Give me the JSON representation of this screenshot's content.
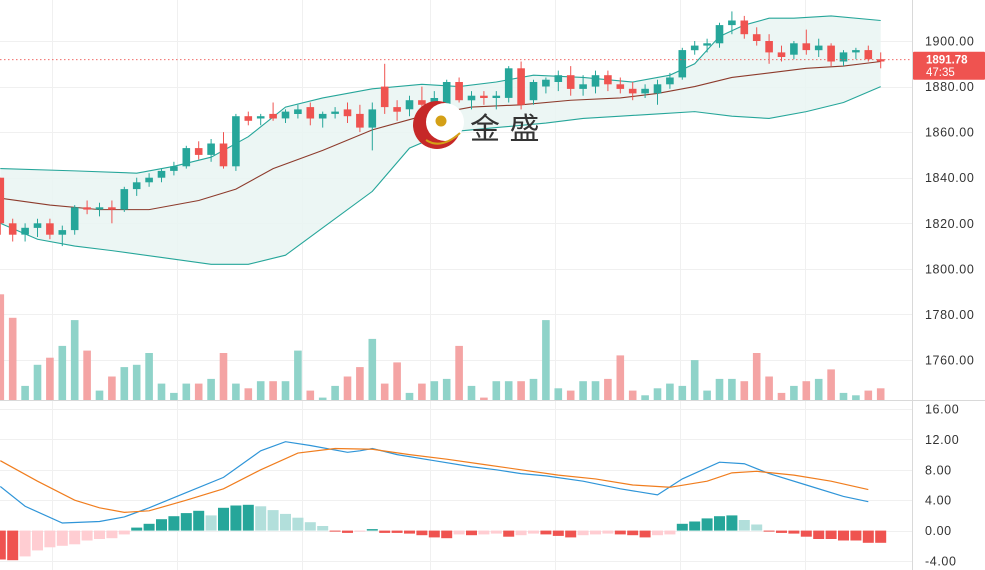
{
  "watermark": {
    "brand_text": "金 盛"
  },
  "current_price": {
    "price": "1891.78",
    "countdown": "47:35",
    "color": "#ef5350"
  },
  "colors": {
    "up": "#26a69a",
    "down": "#ef5350",
    "vol_up": "#8fd3c9",
    "vol_down": "#f4a4a4",
    "bb_band": "#26a69a",
    "bb_mid": "#8d3b2c",
    "bb_fill": "#e9f5f2",
    "macd_dif": "#2f95d8",
    "macd_dea": "#f07d1e",
    "hist_pos_grow": "#26a69a",
    "hist_pos_fall": "#b2dfdb",
    "hist_neg_grow": "#ef5350",
    "hist_neg_fall": "#ffcdd2",
    "grid": "#f0f0f0",
    "axis_line": "#d9d9d9",
    "logo": "#c62828",
    "logo_ball": "#d4a017"
  },
  "chart_data": [
    {
      "type": "candlestick",
      "title": "",
      "indicators": [
        "Bollinger Bands",
        "Volume"
      ],
      "ylim": [
        1744,
        1912
      ],
      "yticks": [
        "1900.00",
        "1880.00",
        "1860.00",
        "1840.00",
        "1820.00",
        "1800.00",
        "1780.00",
        "1760.00"
      ],
      "grid": true,
      "candles": [
        [
          1840,
          1840,
          1815,
          1820
        ],
        [
          1820,
          1822,
          1812,
          1815
        ],
        [
          1815,
          1820,
          1812,
          1818
        ],
        [
          1818,
          1822,
          1814,
          1820
        ],
        [
          1820,
          1822,
          1813,
          1815
        ],
        [
          1815,
          1819,
          1810,
          1817
        ],
        [
          1817,
          1828,
          1815,
          1827
        ],
        [
          1827,
          1830,
          1824,
          1826
        ],
        [
          1826,
          1829,
          1823,
          1827
        ],
        [
          1827,
          1830,
          1820,
          1826
        ],
        [
          1826,
          1836,
          1825,
          1835
        ],
        [
          1835,
          1840,
          1832,
          1838
        ],
        [
          1838,
          1842,
          1836,
          1840
        ],
        [
          1840,
          1844,
          1838,
          1843
        ],
        [
          1843,
          1847,
          1841,
          1845
        ],
        [
          1845,
          1854,
          1844,
          1853
        ],
        [
          1853,
          1856,
          1848,
          1850
        ],
        [
          1850,
          1857,
          1847,
          1855
        ],
        [
          1855,
          1860,
          1844,
          1845
        ],
        [
          1845,
          1868,
          1843,
          1867
        ],
        [
          1867,
          1869,
          1863,
          1865
        ],
        [
          1866,
          1868,
          1863,
          1867
        ],
        [
          1868,
          1873,
          1865,
          1866
        ],
        [
          1866,
          1870,
          1864,
          1869
        ],
        [
          1868,
          1872,
          1866,
          1870
        ],
        [
          1871,
          1873,
          1863,
          1866
        ],
        [
          1866,
          1869,
          1862,
          1868
        ],
        [
          1868,
          1871,
          1866,
          1869
        ],
        [
          1870,
          1873,
          1864,
          1867
        ],
        [
          1868,
          1872,
          1860,
          1862
        ],
        [
          1862,
          1873,
          1852,
          1870
        ],
        [
          1880,
          1890,
          1868,
          1871
        ],
        [
          1871,
          1874,
          1865,
          1869
        ],
        [
          1870,
          1876,
          1867,
          1874
        ],
        [
          1874,
          1880,
          1868,
          1872
        ],
        [
          1872,
          1878,
          1867,
          1875
        ],
        [
          1870,
          1883,
          1868,
          1882
        ],
        [
          1882,
          1884,
          1873,
          1874
        ],
        [
          1874,
          1878,
          1870,
          1876
        ],
        [
          1876,
          1878,
          1872,
          1875
        ],
        [
          1875,
          1878,
          1870,
          1876
        ],
        [
          1875,
          1889,
          1873,
          1888
        ],
        [
          1888,
          1891,
          1870,
          1872
        ],
        [
          1874,
          1883,
          1872,
          1882
        ],
        [
          1880,
          1884,
          1877,
          1883
        ],
        [
          1882,
          1887,
          1878,
          1885
        ],
        [
          1885,
          1889,
          1876,
          1879
        ],
        [
          1879,
          1885,
          1876,
          1881
        ],
        [
          1880,
          1887,
          1877,
          1885
        ],
        [
          1885,
          1887,
          1878,
          1881
        ],
        [
          1881,
          1884,
          1877,
          1879
        ],
        [
          1879,
          1882,
          1874,
          1877
        ],
        [
          1877,
          1881,
          1875,
          1879
        ],
        [
          1877,
          1883,
          1872,
          1881
        ],
        [
          1881,
          1886,
          1879,
          1884
        ],
        [
          1884,
          1897,
          1883,
          1896
        ],
        [
          1896,
          1900,
          1894,
          1898
        ],
        [
          1898,
          1901,
          1895,
          1899
        ],
        [
          1899,
          1908,
          1897,
          1907
        ],
        [
          1907,
          1913,
          1903,
          1909
        ],
        [
          1909,
          1911,
          1901,
          1903
        ],
        [
          1903,
          1906,
          1898,
          1900
        ],
        [
          1900,
          1903,
          1890,
          1895
        ],
        [
          1895,
          1898,
          1891,
          1893
        ],
        [
          1894,
          1900,
          1892,
          1899
        ],
        [
          1899,
          1905,
          1894,
          1896
        ],
        [
          1896,
          1901,
          1893,
          1898
        ],
        [
          1898,
          1899,
          1889,
          1891
        ],
        [
          1891,
          1896,
          1889,
          1895
        ],
        [
          1895,
          1897,
          1892,
          1896
        ],
        [
          1896,
          1898,
          1891,
          1892
        ],
        [
          1892,
          1895,
          1888,
          1891
        ]
      ],
      "volume": [
        45,
        35,
        6,
        15,
        18,
        23,
        34,
        21,
        4,
        10,
        14,
        15,
        20,
        7,
        3,
        7,
        7,
        9,
        20,
        7,
        5,
        8,
        8,
        8,
        21,
        4,
        1,
        6,
        10,
        14,
        26,
        7,
        16,
        3,
        7,
        8,
        9,
        23,
        6,
        1,
        8,
        8,
        8,
        9,
        34,
        5,
        4,
        8,
        8,
        9,
        19,
        4,
        2,
        5,
        7,
        6,
        17,
        4,
        9,
        9,
        8,
        20,
        10,
        3,
        6,
        8,
        9,
        13,
        3,
        2,
        4,
        5
      ],
      "bollinger": {
        "upper": [
          [
            0,
            1844
          ],
          [
            6,
            1843
          ],
          [
            11,
            1842
          ],
          [
            14,
            1845
          ],
          [
            17,
            1849
          ],
          [
            20,
            1858
          ],
          [
            23,
            1871
          ],
          [
            26,
            1875
          ],
          [
            30,
            1879
          ],
          [
            34,
            1881
          ],
          [
            37,
            1880
          ],
          [
            40,
            1882
          ],
          [
            43,
            1885
          ],
          [
            47,
            1884
          ],
          [
            51,
            1882
          ],
          [
            54,
            1885
          ],
          [
            56,
            1890
          ],
          [
            58,
            1902
          ],
          [
            60,
            1907
          ],
          [
            62,
            1910
          ],
          [
            64,
            1910
          ],
          [
            67,
            1911
          ],
          [
            71,
            1909
          ]
        ],
        "middle": [
          [
            0,
            1831
          ],
          [
            4,
            1828
          ],
          [
            8,
            1826
          ],
          [
            12,
            1826
          ],
          [
            16,
            1830
          ],
          [
            19,
            1835
          ],
          [
            22,
            1844
          ],
          [
            26,
            1852
          ],
          [
            30,
            1861
          ],
          [
            34,
            1867
          ],
          [
            38,
            1871
          ],
          [
            42,
            1872
          ],
          [
            46,
            1874
          ],
          [
            50,
            1875
          ],
          [
            53,
            1877
          ],
          [
            56,
            1880
          ],
          [
            59,
            1884
          ],
          [
            62,
            1886
          ],
          [
            65,
            1888
          ],
          [
            68,
            1889
          ],
          [
            71,
            1891
          ]
        ],
        "lower": [
          [
            0,
            1820
          ],
          [
            3,
            1813
          ],
          [
            6,
            1810
          ],
          [
            9,
            1808
          ],
          [
            13,
            1805
          ],
          [
            17,
            1802
          ],
          [
            20,
            1802
          ],
          [
            23,
            1806
          ],
          [
            26,
            1818
          ],
          [
            30,
            1834
          ],
          [
            33,
            1853
          ],
          [
            36,
            1860
          ],
          [
            40,
            1862
          ],
          [
            44,
            1864
          ],
          [
            47,
            1866
          ],
          [
            50,
            1867
          ],
          [
            53,
            1868
          ],
          [
            56,
            1869
          ],
          [
            59,
            1867
          ],
          [
            62,
            1866
          ],
          [
            65,
            1869
          ],
          [
            68,
            1873
          ],
          [
            71,
            1880
          ]
        ]
      }
    },
    {
      "type": "line",
      "title": "",
      "indicator": "MACD",
      "ylim": [
        -4,
        16
      ],
      "yticks": [
        "16.00",
        "12.00",
        "8.00",
        "4.00",
        "0.00",
        "-4.00"
      ],
      "series": [
        {
          "values": [
            [
              0,
              5.8
            ],
            [
              2,
              3.2
            ],
            [
              5,
              1.0
            ],
            [
              8,
              1.2
            ],
            [
              10,
              1.8
            ],
            [
              12,
              3.0
            ],
            [
              15,
              5.0
            ],
            [
              18,
              7.0
            ],
            [
              21,
              10.5
            ],
            [
              23,
              11.7
            ],
            [
              25,
              11.2
            ],
            [
              28,
              10.3
            ],
            [
              29,
              10.5
            ],
            [
              30,
              10.8
            ],
            [
              32,
              10.0
            ],
            [
              35,
              9.2
            ],
            [
              38,
              8.4
            ],
            [
              40,
              8.0
            ],
            [
              42,
              7.5
            ],
            [
              44,
              7.2
            ],
            [
              47,
              6.5
            ],
            [
              50,
              5.5
            ],
            [
              53,
              4.7
            ],
            [
              55,
              6.8
            ],
            [
              58,
              9.0
            ],
            [
              60,
              8.8
            ],
            [
              62,
              7.5
            ],
            [
              65,
              6.0
            ],
            [
              68,
              4.5
            ],
            [
              70,
              3.8
            ]
          ]
        },
        {
          "values": [
            [
              0,
              9.2
            ],
            [
              3,
              6.5
            ],
            [
              6,
              4.0
            ],
            [
              8,
              3.0
            ],
            [
              10,
              2.4
            ],
            [
              12,
              2.6
            ],
            [
              15,
              4.0
            ],
            [
              18,
              5.5
            ],
            [
              21,
              8.0
            ],
            [
              24,
              10.2
            ],
            [
              27,
              10.8
            ],
            [
              30,
              10.7
            ],
            [
              33,
              10.0
            ],
            [
              36,
              9.4
            ],
            [
              39,
              8.7
            ],
            [
              42,
              8.0
            ],
            [
              45,
              7.3
            ],
            [
              48,
              6.8
            ],
            [
              51,
              6.0
            ],
            [
              54,
              5.7
            ],
            [
              57,
              6.5
            ],
            [
              59,
              7.6
            ],
            [
              61,
              7.8
            ],
            [
              64,
              7.3
            ],
            [
              67,
              6.5
            ],
            [
              70,
              5.4
            ]
          ]
        }
      ],
      "histogram": [
        -3.8,
        -3.9,
        -3.4,
        -2.6,
        -2.2,
        -2.0,
        -1.8,
        -1.3,
        -1.1,
        -1.0,
        -0.5,
        0.4,
        0.9,
        1.5,
        1.9,
        2.3,
        2.6,
        2.0,
        3.0,
        3.3,
        3.4,
        3.2,
        2.7,
        2.2,
        1.7,
        1.1,
        0.6,
        -0.1,
        -0.3,
        -0.1,
        0.2,
        -0.3,
        -0.3,
        -0.4,
        -0.6,
        -0.9,
        -1.0,
        -0.5,
        -0.6,
        -0.5,
        -0.4,
        -0.8,
        -0.6,
        -0.4,
        -0.5,
        -0.7,
        -0.9,
        -0.6,
        -0.5,
        -0.4,
        -0.5,
        -0.6,
        -0.9,
        -0.6,
        -0.5,
        0.9,
        1.2,
        1.6,
        1.9,
        2.0,
        1.4,
        0.8,
        -0.1,
        -0.3,
        -0.4,
        -0.8,
        -1.1,
        -1.1,
        -1.3,
        -1.3,
        -1.6,
        -1.6
      ]
    }
  ]
}
